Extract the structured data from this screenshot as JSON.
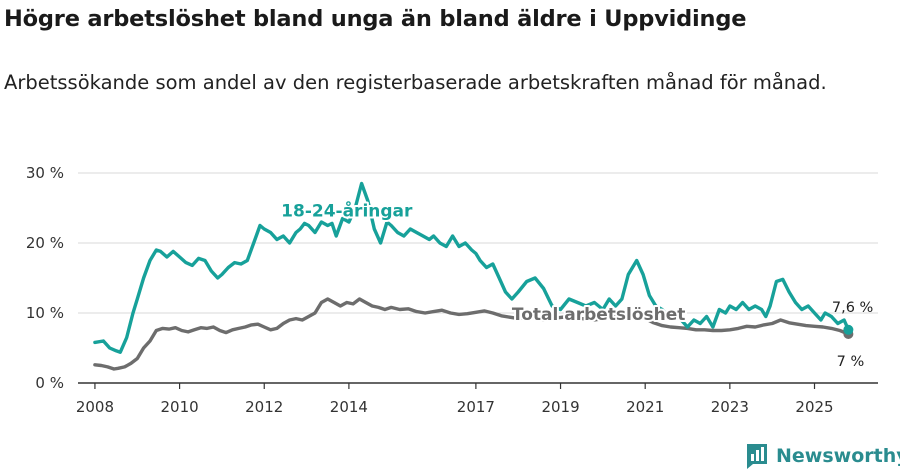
{
  "header": {
    "title": "Högre arbetslöshet bland unga än bland äldre i Uppvidinge",
    "subtitle": "Arbetssökande som andel av den registerbaserade arbetskraften månad för månad."
  },
  "brand": {
    "name": "Newsworthy"
  },
  "colors": {
    "youth": "#17a19a",
    "total": "#6d6d6d",
    "grid": "#d9d9d9",
    "axis": "#333333"
  },
  "chart_data": {
    "type": "line",
    "title": "Högre arbetslöshet bland unga än bland äldre i Uppvidinge",
    "subtitle": "Arbetssökande som andel av den registerbaserade arbetskraften månad för månad.",
    "xlabel": "",
    "ylabel": "",
    "xlim": [
      2007.6,
      2026.5
    ],
    "ylim": [
      0,
      30
    ],
    "y_ticks": [
      0,
      10,
      20,
      30
    ],
    "y_tick_labels": [
      "0 %",
      "10 %",
      "20 %",
      "30 %"
    ],
    "x_ticks": [
      2008,
      2010,
      2012,
      2014,
      2017,
      2019,
      2021,
      2023,
      2025
    ],
    "x_tick_labels": [
      "2008",
      "2010",
      "2012",
      "2014",
      "2017",
      "2019",
      "2021",
      "2023",
      "2025"
    ],
    "grid": true,
    "series": [
      {
        "name": "18-24-åringar",
        "label": "18-24-åringar",
        "end_label": "7,6 %",
        "x": [
          2008.0,
          2008.2,
          2008.35,
          2008.5,
          2008.6,
          2008.75,
          2008.9,
          2009.0,
          2009.15,
          2009.3,
          2009.45,
          2009.55,
          2009.7,
          2009.85,
          2010.0,
          2010.15,
          2010.3,
          2010.45,
          2010.6,
          2010.75,
          2010.9,
          2011.0,
          2011.15,
          2011.3,
          2011.45,
          2011.6,
          2011.75,
          2011.9,
          2012.0,
          2012.15,
          2012.3,
          2012.45,
          2012.6,
          2012.75,
          2012.85,
          2012.95,
          2013.05,
          2013.2,
          2013.35,
          2013.5,
          2013.6,
          2013.7,
          2013.85,
          2014.0,
          2014.15,
          2014.3,
          2014.45,
          2014.6,
          2014.75,
          2014.9,
          2015.0,
          2015.15,
          2015.3,
          2015.45,
          2015.6,
          2015.75,
          2015.9,
          2016.0,
          2016.15,
          2016.3,
          2016.45,
          2016.6,
          2016.75,
          2016.9,
          2017.0,
          2017.1,
          2017.25,
          2017.4,
          2017.55,
          2017.7,
          2017.85,
          2018.0,
          2018.2,
          2018.4,
          2018.6,
          2018.8,
          2019.0,
          2019.2,
          2019.4,
          2019.6,
          2019.8,
          2020.0,
          2020.15,
          2020.3,
          2020.45,
          2020.6,
          2020.7,
          2020.8,
          2020.95,
          2021.1,
          2021.25,
          2021.4,
          2021.55,
          2021.7,
          2021.85,
          2022.0,
          2022.15,
          2022.3,
          2022.45,
          2022.6,
          2022.75,
          2022.9,
          2023.0,
          2023.15,
          2023.3,
          2023.45,
          2023.6,
          2023.75,
          2023.85,
          2023.95,
          2024.1,
          2024.25,
          2024.4,
          2024.55,
          2024.7,
          2024.85,
          2025.0,
          2025.15,
          2025.25,
          2025.4,
          2025.55,
          2025.7,
          2025.8
        ],
        "y": [
          5.8,
          6.0,
          5.0,
          4.6,
          4.4,
          6.5,
          10.0,
          12.0,
          15.0,
          17.5,
          19.0,
          18.8,
          18.0,
          18.8,
          18.0,
          17.2,
          16.8,
          17.8,
          17.5,
          16.0,
          15.0,
          15.5,
          16.5,
          17.2,
          17.0,
          17.5,
          20.0,
          22.5,
          22.0,
          21.5,
          20.5,
          21.0,
          20.0,
          21.5,
          22.0,
          22.8,
          22.5,
          21.5,
          23.0,
          22.5,
          22.8,
          21.0,
          23.5,
          23.0,
          25.0,
          28.5,
          26.0,
          22.0,
          20.0,
          23.0,
          22.5,
          21.5,
          21.0,
          22.0,
          21.5,
          21.0,
          20.5,
          21.0,
          20.0,
          19.5,
          21.0,
          19.5,
          20.0,
          19.0,
          18.5,
          17.5,
          16.5,
          17.0,
          15.0,
          13.0,
          12.0,
          13.0,
          14.5,
          15.0,
          13.5,
          11.0,
          10.5,
          12.0,
          11.5,
          11.0,
          11.5,
          10.5,
          12.0,
          11.0,
          12.0,
          15.5,
          16.5,
          17.5,
          15.5,
          12.5,
          11.0,
          10.5,
          9.5,
          9.5,
          9.0,
          8.0,
          9.0,
          8.5,
          9.5,
          8.0,
          10.5,
          10.0,
          11.0,
          10.5,
          11.5,
          10.5,
          11.0,
          10.5,
          9.5,
          11.0,
          14.5,
          14.8,
          13.0,
          11.5,
          10.5,
          11.0,
          10.0,
          9.0,
          10.0,
          9.5,
          8.5,
          9.0,
          7.6
        ]
      },
      {
        "name": "Total arbetslöshet",
        "label": "Total arbetslöshet",
        "end_label": "7 %",
        "x": [
          2008.0,
          2008.15,
          2008.3,
          2008.45,
          2008.55,
          2008.7,
          2008.85,
          2009.0,
          2009.15,
          2009.3,
          2009.45,
          2009.6,
          2009.75,
          2009.9,
          2010.05,
          2010.2,
          2010.35,
          2010.5,
          2010.65,
          2010.8,
          2010.95,
          2011.1,
          2011.25,
          2011.4,
          2011.55,
          2011.7,
          2011.85,
          2012.0,
          2012.15,
          2012.3,
          2012.45,
          2012.6,
          2012.75,
          2012.9,
          2013.05,
          2013.2,
          2013.35,
          2013.5,
          2013.65,
          2013.8,
          2013.95,
          2014.1,
          2014.25,
          2014.4,
          2014.55,
          2014.7,
          2014.85,
          2015.0,
          2015.2,
          2015.4,
          2015.6,
          2015.8,
          2016.0,
          2016.2,
          2016.4,
          2016.6,
          2016.8,
          2017.0,
          2017.2,
          2017.4,
          2017.6,
          2017.8,
          2018.0,
          2018.3,
          2018.6,
          2018.9,
          2019.2,
          2019.5,
          2019.8,
          2020.1,
          2020.4,
          2020.6,
          2020.8,
          2021.0,
          2021.2,
          2021.4,
          2021.6,
          2021.8,
          2022.0,
          2022.2,
          2022.4,
          2022.6,
          2022.8,
          2023.0,
          2023.2,
          2023.4,
          2023.6,
          2023.8,
          2024.0,
          2024.2,
          2024.4,
          2024.6,
          2024.8,
          2025.0,
          2025.2,
          2025.4,
          2025.6,
          2025.8
        ],
        "y": [
          2.6,
          2.5,
          2.3,
          2.0,
          2.1,
          2.3,
          2.8,
          3.5,
          5.0,
          6.0,
          7.5,
          7.8,
          7.7,
          7.9,
          7.5,
          7.3,
          7.6,
          7.9,
          7.8,
          8.0,
          7.5,
          7.2,
          7.6,
          7.8,
          8.0,
          8.3,
          8.4,
          8.0,
          7.6,
          7.8,
          8.5,
          9.0,
          9.2,
          9.0,
          9.5,
          10.0,
          11.5,
          12.0,
          11.5,
          11.0,
          11.5,
          11.3,
          12.0,
          11.5,
          11.0,
          10.8,
          10.5,
          10.8,
          10.5,
          10.6,
          10.2,
          10.0,
          10.2,
          10.4,
          10.0,
          9.8,
          9.9,
          10.1,
          10.3,
          10.0,
          9.6,
          9.4,
          9.2,
          9.4,
          9.0,
          9.3,
          9.5,
          9.2,
          9.0,
          9.3,
          9.6,
          9.9,
          10.0,
          9.2,
          8.6,
          8.2,
          8.0,
          7.9,
          7.8,
          7.6,
          7.6,
          7.5,
          7.5,
          7.6,
          7.8,
          8.1,
          8.0,
          8.3,
          8.5,
          9.0,
          8.6,
          8.4,
          8.2,
          8.1,
          8.0,
          7.8,
          7.5,
          7.0
        ]
      }
    ]
  }
}
